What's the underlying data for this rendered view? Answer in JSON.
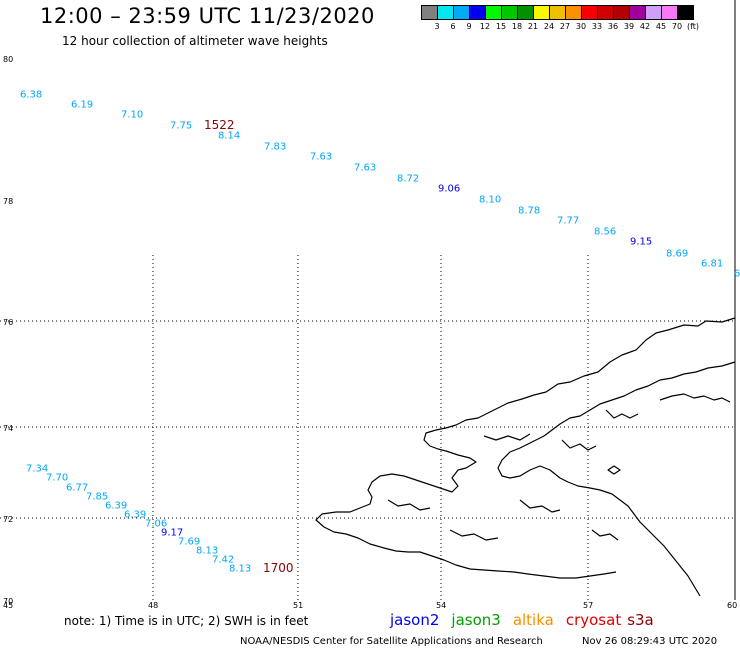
{
  "header": {
    "title": "12:00 – 23:59 UTC 11/23/2020",
    "subtitle": "12 hour collection of altimeter wave heights"
  },
  "scale": {
    "colors": [
      "#808080",
      "#00e8f0",
      "#00a8f8",
      "#0000f0",
      "#00f800",
      "#00c800",
      "#009000",
      "#f8f800",
      "#f0c000",
      "#f89000",
      "#f80000",
      "#d00000",
      "#b00000",
      "#a000a0",
      "#d0a0f8",
      "#f878f8",
      "#000000"
    ],
    "labels": [
      "3",
      "6",
      "9",
      "12",
      "15",
      "18",
      "21",
      "24",
      "27",
      "30",
      "33",
      "36",
      "39",
      "42",
      "45",
      "70",
      "(ft)"
    ]
  },
  "map_data": {
    "lon_ticks": [
      "45",
      "48",
      "51",
      "54",
      "57",
      "60"
    ],
    "lat_ticks": [
      "80",
      "78",
      "76",
      "74",
      "72",
      "70"
    ],
    "heights_n": [
      {
        "v": "6.38",
        "c": "#00a8f8"
      },
      {
        "v": "6.19",
        "c": "#00a8f8"
      },
      {
        "v": "7.10",
        "c": "#00a8f8"
      },
      {
        "v": "7.75",
        "c": "#00a8f8"
      },
      {
        "v": "8.14",
        "c": "#00a8f8"
      },
      {
        "v": "7.83",
        "c": "#00a8f8"
      },
      {
        "v": "7.63",
        "c": "#00a8f8"
      },
      {
        "v": "7.63",
        "c": "#00a8f8"
      },
      {
        "v": "8.72",
        "c": "#00a8f8"
      },
      {
        "v": "9.06",
        "c": "#0000f0"
      },
      {
        "v": "8.10",
        "c": "#00a8f8"
      },
      {
        "v": "8.78",
        "c": "#00a8f8"
      },
      {
        "v": "7.77",
        "c": "#00a8f8"
      },
      {
        "v": "8.56",
        "c": "#00a8f8"
      },
      {
        "v": "9.15",
        "c": "#0000f0"
      },
      {
        "v": "8.69",
        "c": "#00a8f8"
      },
      {
        "v": "6.81",
        "c": "#00a8f8"
      },
      {
        "v": "6",
        "c": "#00a8f8"
      }
    ],
    "heights_s": [
      {
        "v": "7.34",
        "c": "#00a8f8"
      },
      {
        "v": "7.70",
        "c": "#00a8f8"
      },
      {
        "v": "6.77",
        "c": "#00a8f8"
      },
      {
        "v": "7.85",
        "c": "#00a8f8"
      },
      {
        "v": "6.39",
        "c": "#00a8f8"
      },
      {
        "v": "6.39",
        "c": "#00a8f8"
      },
      {
        "v": "7.06",
        "c": "#00a8f8"
      },
      {
        "v": "9.17",
        "c": "#0000f0"
      },
      {
        "v": "7.69",
        "c": "#00a8f8"
      },
      {
        "v": "8.13",
        "c": "#00a8f8"
      },
      {
        "v": "7.42",
        "c": "#00a8f8"
      },
      {
        "v": "8.13",
        "c": "#00a8f8"
      }
    ],
    "time_labels": [
      {
        "t": "1522",
        "c": "#900000"
      },
      {
        "t": "1700",
        "c": "#900000"
      }
    ]
  },
  "footer": {
    "note": "note: 1) Time is in UTC; 2) SWH is in feet",
    "satellites": [
      {
        "name": "jason2",
        "color": "#0000f0"
      },
      {
        "name": "jason3",
        "color": "#00a000"
      },
      {
        "name": "altika",
        "color": "#f89000"
      },
      {
        "name": "cryosat",
        "color": "#e00000"
      },
      {
        "name": "s3a",
        "color": "#900000"
      }
    ],
    "credit": "NOAA/NESDIS Center for Satellite Applications and Research",
    "timestamp": "Nov 26 08:29:43 UTC 2020"
  }
}
